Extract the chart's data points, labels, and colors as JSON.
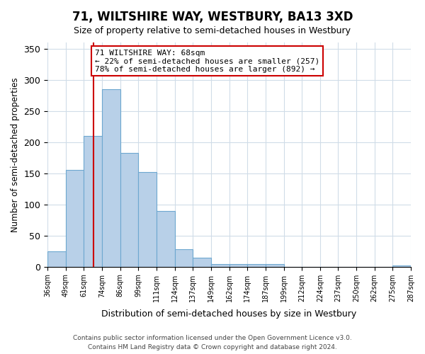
{
  "title": "71, WILTSHIRE WAY, WESTBURY, BA13 3XD",
  "subtitle": "Size of property relative to semi-detached houses in Westbury",
  "xlabel": "Distribution of semi-detached houses by size in Westbury",
  "ylabel": "Number of semi-detached properties",
  "bar_color": "#b8d0e8",
  "bar_edge_color": "#6ea8d0",
  "marker_line_color": "#cc0000",
  "marker_value": 68,
  "annotation_title": "71 WILTSHIRE WAY: 68sqm",
  "annotation_line1": "← 22% of semi-detached houses are smaller (257)",
  "annotation_line2": "78% of semi-detached houses are larger (892) →",
  "annotation_box_color": "#cc0000",
  "bin_labels": [
    "36sqm",
    "49sqm",
    "61sqm",
    "74sqm",
    "86sqm",
    "99sqm",
    "111sqm",
    "124sqm",
    "137sqm",
    "149sqm",
    "162sqm",
    "174sqm",
    "187sqm",
    "199sqm",
    "212sqm",
    "224sqm",
    "237sqm",
    "250sqm",
    "262sqm",
    "275sqm",
    "287sqm"
  ],
  "counts": [
    25,
    155,
    210,
    285,
    183,
    152,
    90,
    28,
    14,
    4,
    4,
    4,
    4,
    0,
    0,
    0,
    0,
    0,
    0,
    2
  ],
  "ylim": [
    0,
    360
  ],
  "yticks": [
    0,
    50,
    100,
    150,
    200,
    250,
    300,
    350
  ],
  "background_color": "#ffffff",
  "grid_color": "#d0dce8",
  "footer1": "Contains HM Land Registry data © Crown copyright and database right 2024.",
  "footer2": "Contains public sector information licensed under the Open Government Licence v3.0."
}
